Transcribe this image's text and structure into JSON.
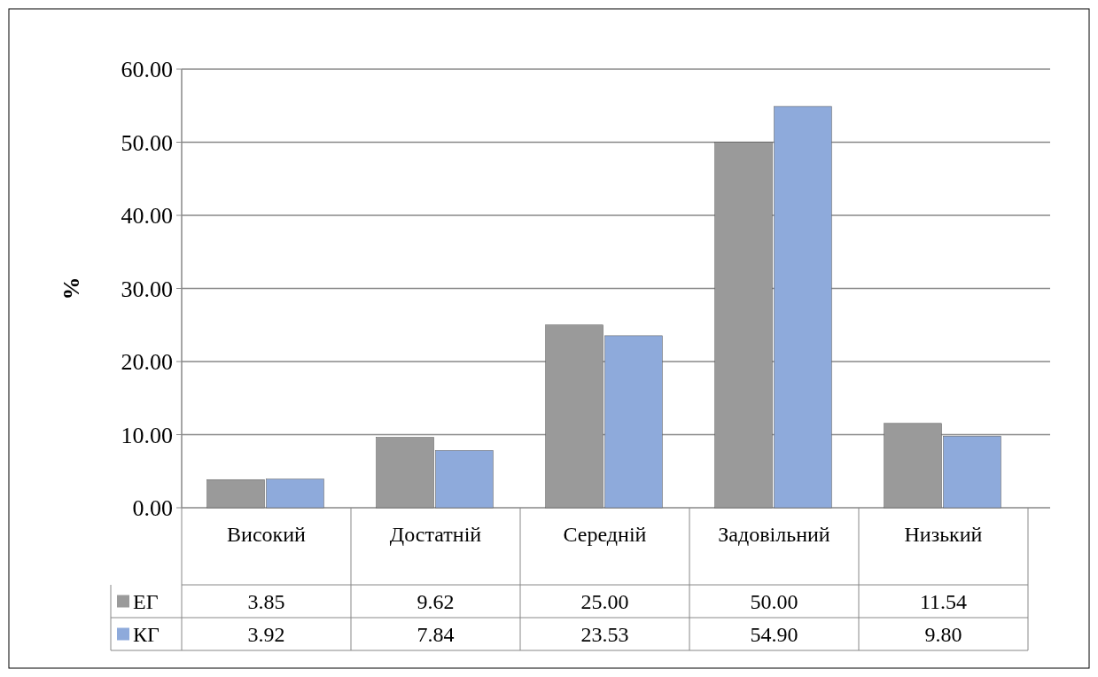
{
  "chart_data": {
    "type": "bar",
    "ylabel": "%",
    "categories": [
      "Високий",
      "Достатній",
      "Середній",
      "Задовільний",
      "Низький"
    ],
    "series": [
      {
        "name": "ЕГ",
        "color": "#9a9a9a",
        "values": [
          3.85,
          9.62,
          25.0,
          50.0,
          11.54
        ],
        "value_labels": [
          "3.85",
          "9.62",
          "25.00",
          "50.00",
          "11.54"
        ]
      },
      {
        "name": "КГ",
        "color": "#8eaadb",
        "values": [
          3.92,
          7.84,
          23.53,
          54.9,
          9.8
        ],
        "value_labels": [
          "3.92",
          "7.84",
          "23.53",
          "54.90",
          "9.80"
        ]
      }
    ],
    "ylim": [
      0,
      60
    ],
    "yticks": [
      {
        "value": 0,
        "label": "0.00"
      },
      {
        "value": 10,
        "label": "10.00"
      },
      {
        "value": 20,
        "label": "20.00"
      },
      {
        "value": 30,
        "label": "30.00"
      },
      {
        "value": 40,
        "label": "40.00"
      },
      {
        "value": 50,
        "label": "50.00"
      },
      {
        "value": 60,
        "label": "60.00"
      }
    ],
    "grid": "y",
    "legend": "bottom left"
  }
}
